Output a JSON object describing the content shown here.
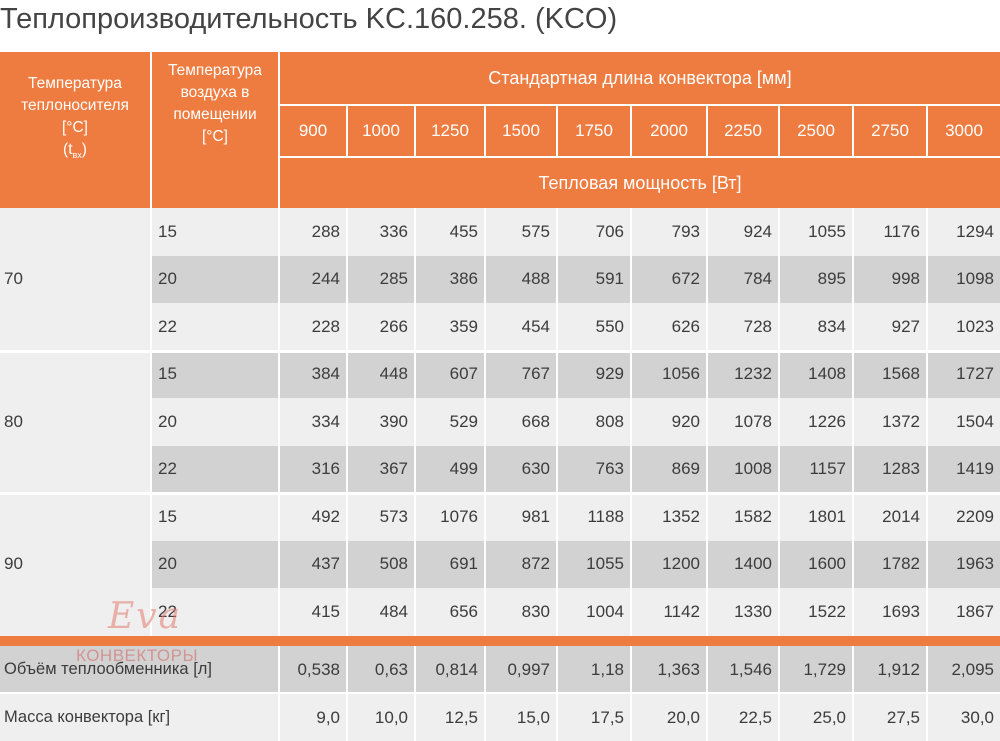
{
  "title": "Теплопроизводительность KC.160.258. (KCO)",
  "header": {
    "water_temp_line1": "Температура",
    "water_temp_line2": "теплоносителя",
    "water_temp_unit": "[°C]",
    "water_temp_symbol": "t",
    "water_temp_sub": "вх",
    "air_temp_line1": "Температура",
    "air_temp_line2": "воздуха в",
    "air_temp_line3": "помещении",
    "air_temp_unit": "[°C]",
    "std_length": "Стандартная длина конвектора [мм]",
    "power": "Тепловая мощность [Вт]",
    "lengths": [
      "900",
      "1000",
      "1250",
      "1500",
      "1750",
      "2000",
      "2250",
      "2500",
      "2750",
      "3000"
    ]
  },
  "groups": [
    {
      "water_temp": "70",
      "rows": [
        {
          "air": "15",
          "values": [
            "288",
            "336",
            "455",
            "575",
            "706",
            "793",
            "924",
            "1055",
            "1176",
            "1294"
          ]
        },
        {
          "air": "20",
          "values": [
            "244",
            "285",
            "386",
            "488",
            "591",
            "672",
            "784",
            "895",
            "998",
            "1098"
          ]
        },
        {
          "air": "22",
          "values": [
            "228",
            "266",
            "359",
            "454",
            "550",
            "626",
            "728",
            "834",
            "927",
            "1023"
          ]
        }
      ]
    },
    {
      "water_temp": "80",
      "rows": [
        {
          "air": "15",
          "values": [
            "384",
            "448",
            "607",
            "767",
            "929",
            "1056",
            "1232",
            "1408",
            "1568",
            "1727"
          ]
        },
        {
          "air": "20",
          "values": [
            "334",
            "390",
            "529",
            "668",
            "808",
            "920",
            "1078",
            "1226",
            "1372",
            "1504"
          ]
        },
        {
          "air": "22",
          "values": [
            "316",
            "367",
            "499",
            "630",
            "763",
            "869",
            "1008",
            "1157",
            "1283",
            "1419"
          ]
        }
      ]
    },
    {
      "water_temp": "90",
      "rows": [
        {
          "air": "15",
          "values": [
            "492",
            "573",
            "1076",
            "981",
            "1188",
            "1352",
            "1582",
            "1801",
            "2014",
            "2209"
          ]
        },
        {
          "air": "20",
          "values": [
            "437",
            "508",
            "691",
            "872",
            "1055",
            "1200",
            "1400",
            "1600",
            "1782",
            "1963"
          ]
        },
        {
          "air": "22",
          "values": [
            "415",
            "484",
            "656",
            "830",
            "1004",
            "1142",
            "1330",
            "1522",
            "1693",
            "1867"
          ]
        }
      ]
    }
  ],
  "footer": [
    {
      "label": "Объём теплообменника [л]",
      "values": [
        "0,538",
        "0,63",
        "0,814",
        "0,997",
        "1,18",
        "1,363",
        "1,546",
        "1,729",
        "1,912",
        "2,095"
      ]
    },
    {
      "label": "Масса конвектора [кг]",
      "values": [
        "9,0",
        "10,0",
        "12,5",
        "15,0",
        "17,5",
        "20,0",
        "22,5",
        "25,0",
        "27,5",
        "30,0"
      ]
    }
  ],
  "logo": {
    "script": "Eva",
    "text": "КОНВЕКТОРЫ"
  },
  "colors": {
    "accent": "#ee7b3f",
    "row_light": "#efefef",
    "row_dark": "#d2d2d2",
    "text": "#3c3c3c"
  }
}
